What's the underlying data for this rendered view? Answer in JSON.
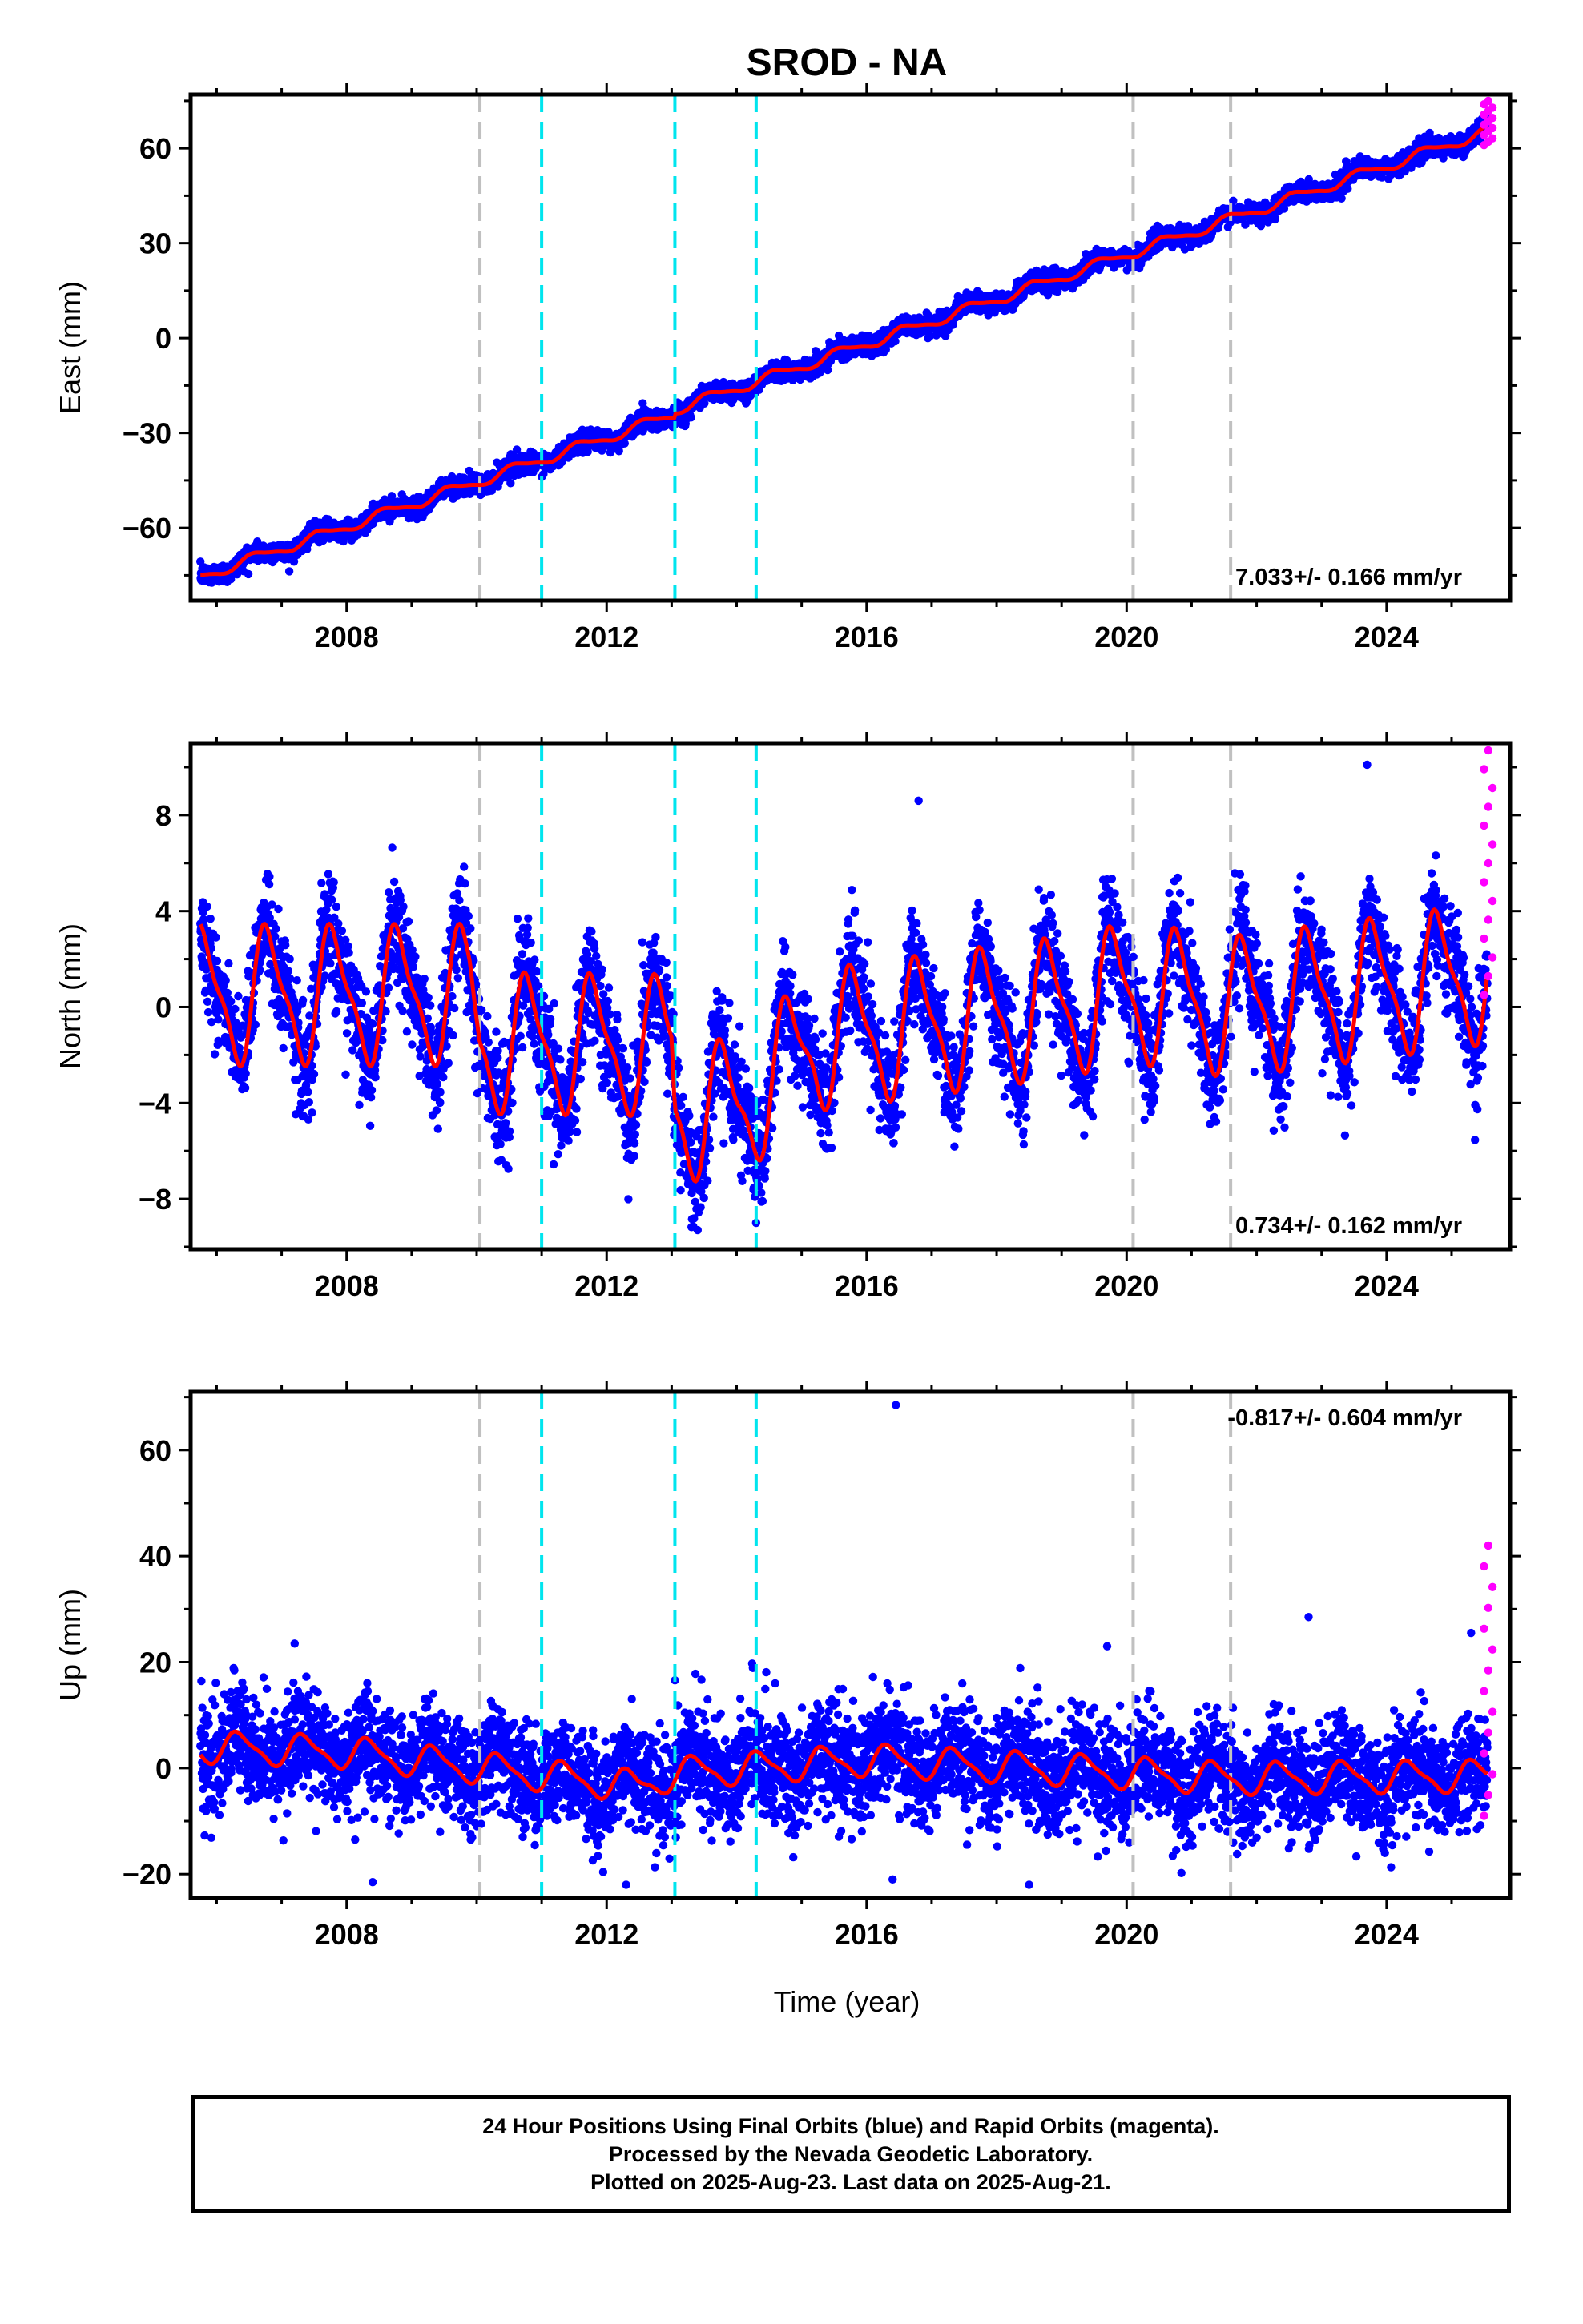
{
  "figure": {
    "title": "SROD - NA",
    "xlabel": "Time (year)",
    "footer": [
      "24 Hour Positions Using Final Orbits (blue) and Rapid Orbits (magenta).",
      "Processed by the Nevada Geodetic Laboratory.",
      "Plotted on 2025-Aug-23. Last data on 2025-Aug-21."
    ]
  },
  "colors": {
    "final_orbit_points": "#0000ff",
    "rapid_orbit_points": "#ff00ff",
    "model_fit": "#ff0000",
    "equipment_change": "#c0c0c0",
    "earthquake": "#00e5ee",
    "frame": "#000000"
  },
  "chart_data": [
    {
      "type": "scatter",
      "name": "east",
      "ylabel": "East (mm)",
      "rate_label": "7.033+/- 0.166 mm/yr",
      "rate_position": "bottom-right",
      "xlim": [
        2005.6,
        2025.9
      ],
      "ylim": [
        -83,
        77
      ],
      "xticks": [
        2008,
        2012,
        2016,
        2020,
        2024
      ],
      "yticks": [
        -60,
        -30,
        0,
        30,
        60
      ],
      "ytick_labels": [
        "−60",
        "−30",
        "0",
        "30",
        "60"
      ],
      "trend": {
        "rate": 7.033,
        "value_at_2016": -3.3
      },
      "seasonal": {
        "annual_amp": 1.6,
        "annual_phase": 0.35,
        "semiannual_amp": 0.4
      },
      "scatter_sd": 1.5,
      "steps": [
        {
          "x": 2013.05,
          "dy": 1.5
        }
      ],
      "data_start": 2005.75,
      "data_end": 2025.55,
      "rapid": {
        "start": 2025.5,
        "end": 2025.63,
        "ymin": 61,
        "ymax": 75
      },
      "equipment_change_lines": [
        2010.05,
        2020.1,
        2021.6
      ],
      "earthquake_lines": [
        2011.0,
        2013.05,
        2014.3
      ]
    },
    {
      "type": "scatter",
      "name": "north",
      "ylabel": "North (mm)",
      "rate_label": "0.734+/- 0.162 mm/yr",
      "rate_position": "bottom-right",
      "xlim": [
        2005.6,
        2025.9
      ],
      "ylim": [
        -10.1,
        11
      ],
      "xticks": [
        2008,
        2012,
        2016,
        2020,
        2024
      ],
      "yticks": [
        -8,
        -4,
        0,
        4,
        8
      ],
      "ytick_labels": [
        "−8",
        "−4",
        "0",
        "4",
        "8"
      ],
      "baseline": [
        [
          2005.75,
          0.5
        ],
        [
          2009.9,
          0.5
        ],
        [
          2010.05,
          -1.5
        ],
        [
          2013.0,
          -1.6
        ],
        [
          2013.05,
          -4.3
        ],
        [
          2014.0,
          -4.3
        ],
        [
          2015.2,
          -1.4
        ],
        [
          2019.0,
          0.0
        ],
        [
          2020.1,
          0.6
        ],
        [
          2021.6,
          0.0
        ],
        [
          2025.6,
          1.4
        ]
      ],
      "seasonal": {
        "annual_amp": 2.6,
        "annual_phase": 0.55,
        "semiannual_amp": 0.8
      },
      "scatter_sd": 1.1,
      "data_start": 2005.75,
      "data_end": 2025.55,
      "outliers": [
        {
          "x": 2012.55,
          "y": 2.7
        },
        {
          "x": 2013.4,
          "y": -9.3
        },
        {
          "x": 2014.3,
          "y": -9.0
        },
        {
          "x": 2023.7,
          "y": 10.1
        },
        {
          "x": 2016.8,
          "y": 8.6
        },
        {
          "x": 2021.3,
          "y": -3.6
        }
      ],
      "rapid": {
        "start": 2025.5,
        "end": 2025.63,
        "ymin": 0.5,
        "ymax": 10.7
      },
      "equipment_change_lines": [
        2010.05,
        2020.1,
        2021.6
      ],
      "earthquake_lines": [
        2011.0,
        2013.05,
        2014.3
      ]
    },
    {
      "type": "scatter",
      "name": "up",
      "ylabel": "Up (mm)",
      "rate_label": "-0.817+/- 0.604 mm/yr",
      "rate_position": "top-right",
      "xlim": [
        2005.6,
        2025.9
      ],
      "ylim": [
        -24.5,
        71
      ],
      "xticks": [
        2008,
        2012,
        2016,
        2020,
        2024
      ],
      "yticks": [
        -20,
        0,
        20,
        40,
        60
      ],
      "ytick_labels": [
        "−20",
        "0",
        "20",
        "40",
        "60"
      ],
      "baseline": [
        [
          2005.75,
          4.0
        ],
        [
          2008.0,
          3.0
        ],
        [
          2010.05,
          0.0
        ],
        [
          2012.5,
          -3.5
        ],
        [
          2013.05,
          -1.0
        ],
        [
          2016.0,
          1.5
        ],
        [
          2020.1,
          -1.0
        ],
        [
          2021.6,
          -2.0
        ],
        [
          2025.6,
          -1.5
        ]
      ],
      "seasonal": {
        "annual_amp": 2.8,
        "annual_phase": 0.1,
        "semiannual_amp": 0.8
      },
      "scatter_sd": 5.0,
      "data_start": 2005.75,
      "data_end": 2025.55,
      "outliers": [
        {
          "x": 2016.45,
          "y": 68.5
        },
        {
          "x": 2022.8,
          "y": 28.5
        },
        {
          "x": 2025.3,
          "y": 25.5
        },
        {
          "x": 2019.7,
          "y": 23.0
        },
        {
          "x": 2007.2,
          "y": 23.5
        },
        {
          "x": 2008.4,
          "y": -21.5
        },
        {
          "x": 2016.4,
          "y": -21.0
        },
        {
          "x": 2018.5,
          "y": -22.0
        },
        {
          "x": 2012.3,
          "y": -22.0
        }
      ],
      "rapid": {
        "start": 2025.5,
        "end": 2025.63,
        "ymin": -9,
        "ymax": 42
      },
      "equipment_change_lines": [
        2010.05,
        2020.1,
        2021.6
      ],
      "earthquake_lines": [
        2011.0,
        2013.05,
        2014.3
      ]
    }
  ]
}
